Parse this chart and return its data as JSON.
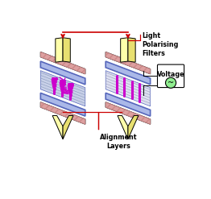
{
  "bg_color": "#ffffff",
  "filter_yellow_light": "#ffffaa",
  "filter_yellow_dark": "#e8e070",
  "plate_pink": "#dda0a0",
  "plate_pink_edge": "#cc8888",
  "plate_blue": "#aab8e8",
  "plate_blue_dark": "#5566bb",
  "liquid_bg": "#c8d0e8",
  "liquid_stripe": "#b8c0d8",
  "molecule_color": "#cc00cc",
  "voltage_circle": "#90ee90",
  "arrow_red": "#cc0000",
  "black": "#000000",
  "label_light": "Light\nPolarising\nFilters",
  "label_alignment": "Alignment\nLayers",
  "label_voltage": "Voltage"
}
